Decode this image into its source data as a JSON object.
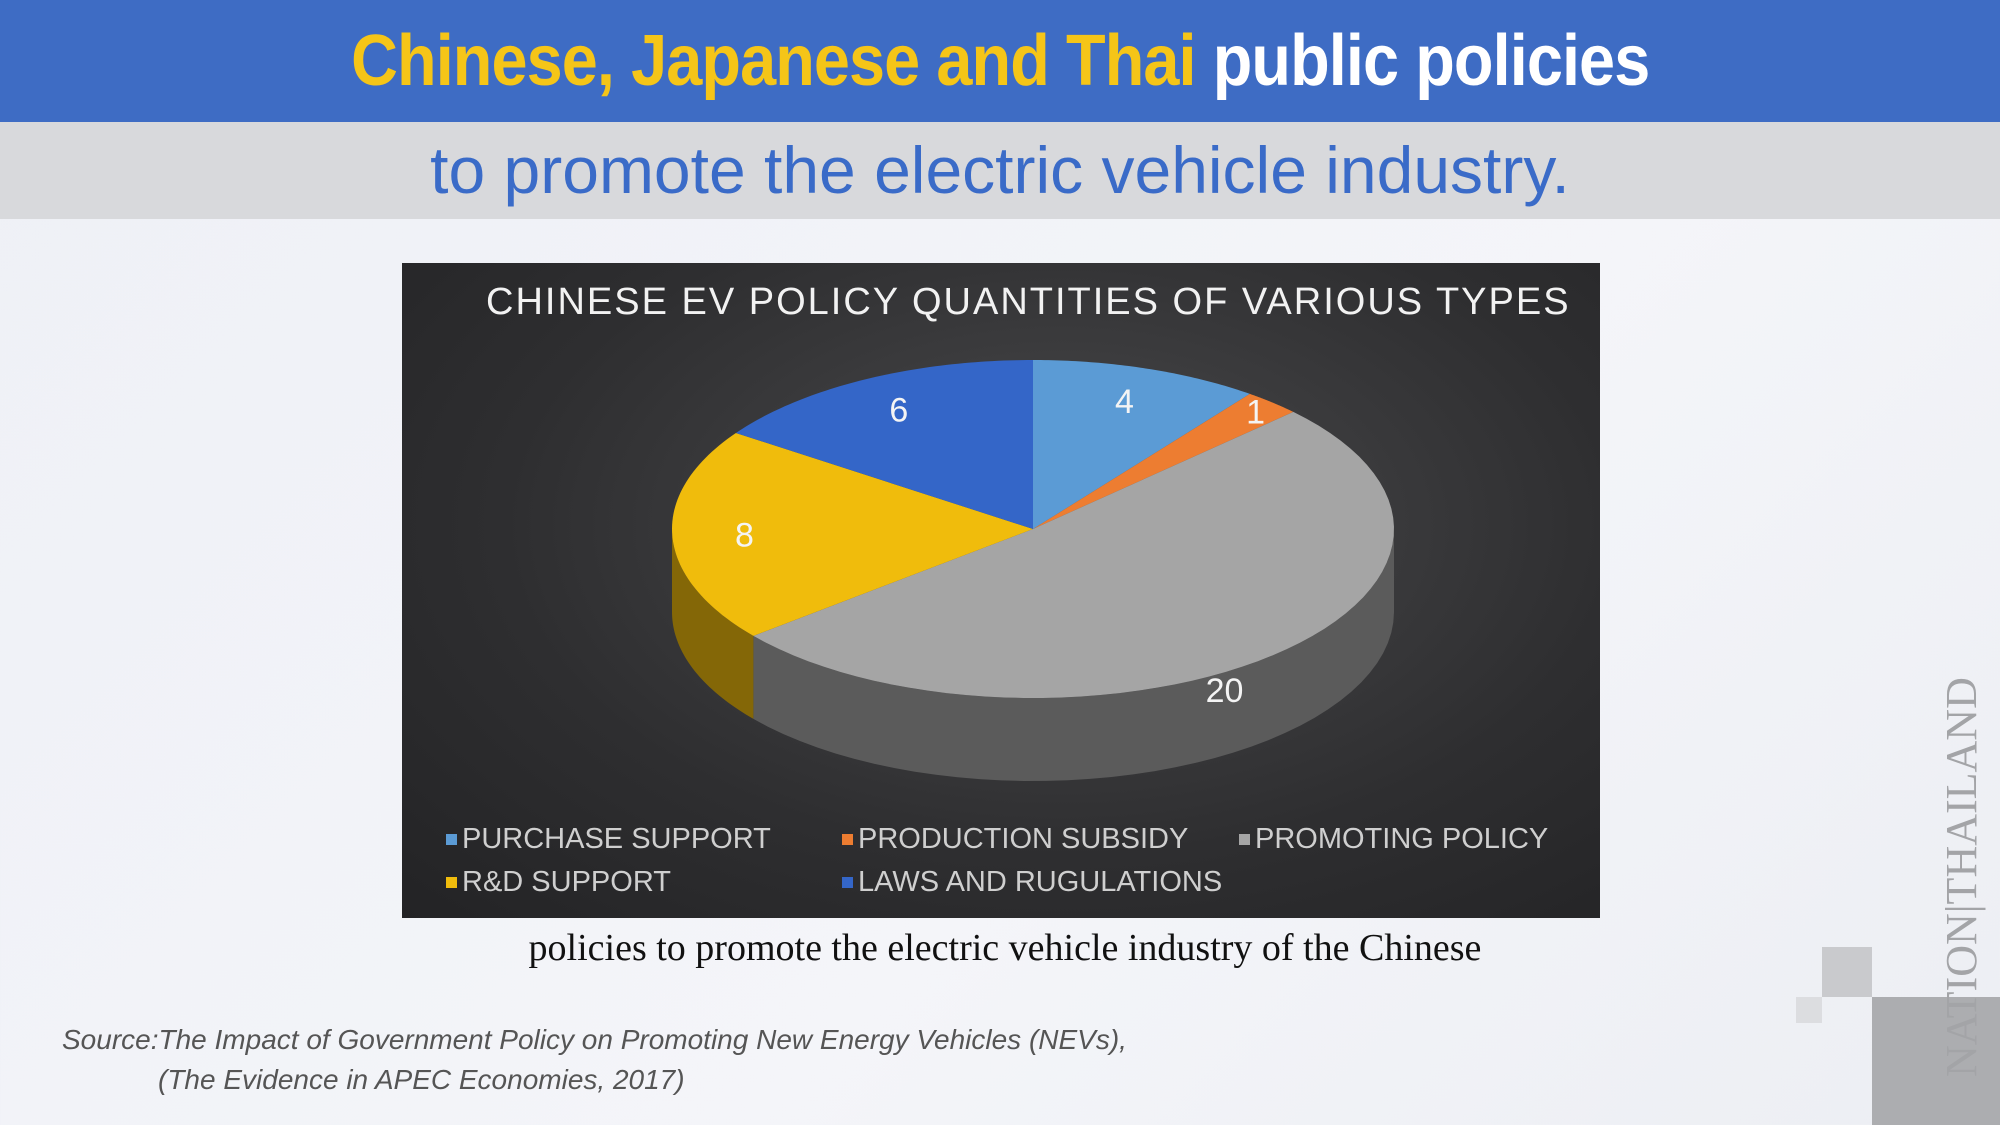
{
  "header": {
    "title_highlight": "Chinese, Japanese and Thai",
    "title_rest": "public policies",
    "subtitle": "to promote the electric vehicle industry."
  },
  "chart_data": {
    "type": "pie",
    "style": "3d",
    "title": "CHINESE EV POLICY QUANTITIES OF VARIOUS TYPES",
    "categories": [
      "PURCHASE SUPPORT",
      "PRODUCTION SUBSIDY",
      "PROMOTING POLICY",
      "R&D SUPPORT",
      "LAWS AND RUGULATIONS"
    ],
    "values": [
      4,
      1,
      20,
      8,
      6
    ],
    "colors": [
      "#5b9bd5",
      "#ed7d31",
      "#a5a5a5",
      "#f0bc0c",
      "#3466c8"
    ],
    "legend_position": "bottom"
  },
  "caption": "policies to promote the electric vehicle industry of the Chinese",
  "source": {
    "line1": "Source:The Impact of Government Policy on Promoting New Energy Vehicles (NEVs),",
    "line2": "(The Evidence in APEC Economies, 2017)"
  },
  "logo": {
    "text": "NATION THAILAND"
  }
}
